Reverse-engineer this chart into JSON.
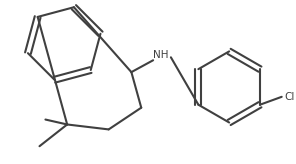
{
  "bg_color": "#ffffff",
  "line_color": "#404040",
  "line_width": 1.5,
  "figsize": [
    2.96,
    1.64
  ],
  "dpi": 100
}
